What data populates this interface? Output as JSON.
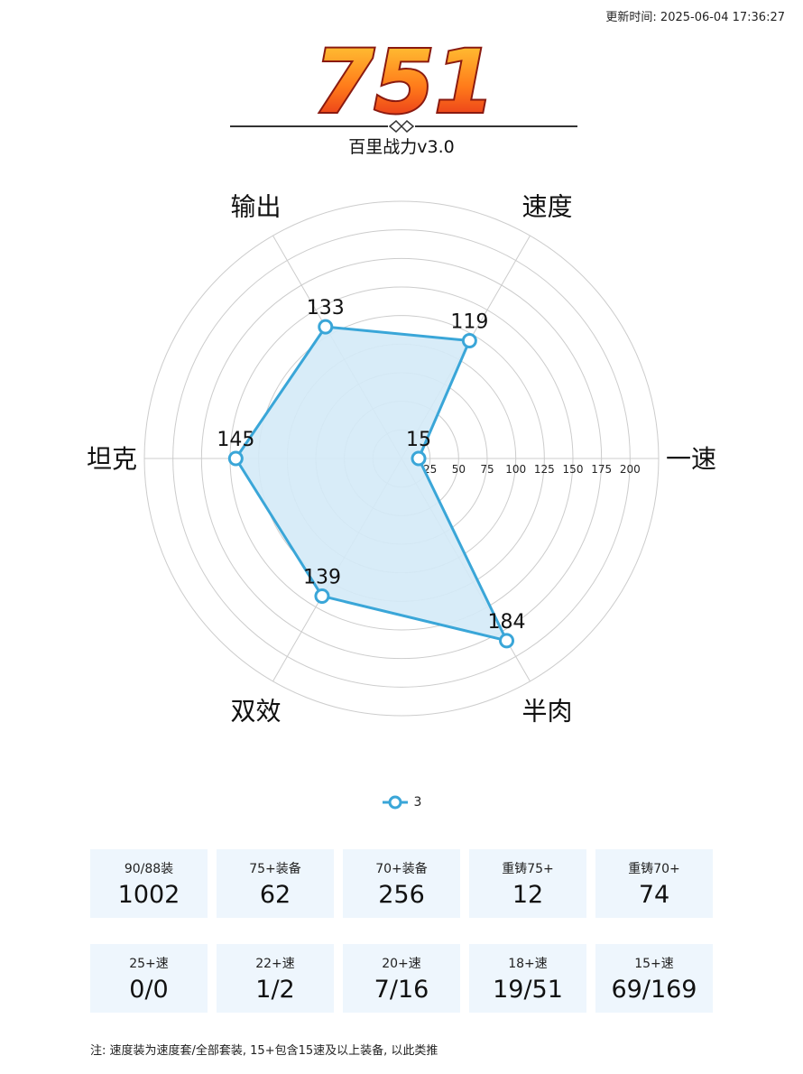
{
  "header": {
    "update_time": "更新时间: 2025-06-04 17:36:27",
    "logo_text": "751",
    "subtitle": "百里战力v3.0"
  },
  "colors": {
    "series": "#3aa6d8",
    "fill": "#d4eaf7",
    "grid": "#cccccc",
    "card_bg": "#eef6fd",
    "logo_top": "#ffd43a",
    "logo_bottom": "#e0201a"
  },
  "chart_data": {
    "type": "radar",
    "indicators": [
      "一速",
      "速度",
      "输出",
      "坦克",
      "双效",
      "半肉"
    ],
    "max": 225,
    "ring_ticks": [
      "25",
      "50",
      "75",
      "100",
      "125",
      "150",
      "175",
      "200"
    ],
    "series": [
      {
        "name": "3",
        "values": [
          15,
          119,
          133,
          145,
          139,
          184
        ]
      }
    ]
  },
  "stats_row1": [
    {
      "label": "90/88装",
      "value": "1002"
    },
    {
      "label": "75+装备",
      "value": "62"
    },
    {
      "label": "70+装备",
      "value": "256"
    },
    {
      "label": "重铸75+",
      "value": "12"
    },
    {
      "label": "重铸70+",
      "value": "74"
    }
  ],
  "stats_row2": [
    {
      "label": "25+速",
      "value": "0/0"
    },
    {
      "label": "22+速",
      "value": "1/2"
    },
    {
      "label": "20+速",
      "value": "7/16"
    },
    {
      "label": "18+速",
      "value": "19/51"
    },
    {
      "label": "15+速",
      "value": "69/169"
    }
  ],
  "note": "注: 速度装为速度套/全部套装, 15+包含15速及以上装备, 以此类推"
}
